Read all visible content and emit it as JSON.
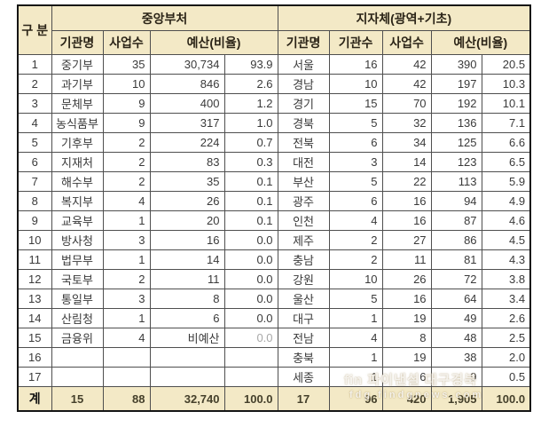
{
  "colors": {
    "header_bg": "#F3E9C6",
    "grid_line": "#4F4F4F",
    "outer_border": "#151515",
    "header_text": "#2B2417",
    "body_text": "#3A3A3A",
    "total_text": "#45402B",
    "muted_text": "#A8A8A8"
  },
  "header": {
    "group_label": "구 분",
    "central": {
      "title": "중앙부처",
      "cols": {
        "name": "기관명",
        "projects": "사업수",
        "budget": "예산(비율)"
      }
    },
    "local": {
      "title": "지자체(광역+기초)",
      "cols": {
        "name": "기관명",
        "orgs": "기관수",
        "projects": "사업수",
        "budget": "예산(비율)"
      }
    }
  },
  "rows": [
    {
      "no": "1",
      "c_name": "중기부",
      "c_proj": "35",
      "c_amt": "30,734",
      "c_pct": "93.9",
      "l_name": "서울",
      "l_org": "16",
      "l_proj": "42",
      "l_amt": "390",
      "l_pct": "20.5"
    },
    {
      "no": "2",
      "c_name": "과기부",
      "c_proj": "10",
      "c_amt": "846",
      "c_pct": "2.6",
      "l_name": "경남",
      "l_org": "10",
      "l_proj": "42",
      "l_amt": "197",
      "l_pct": "10.3"
    },
    {
      "no": "3",
      "c_name": "문체부",
      "c_proj": "9",
      "c_amt": "400",
      "c_pct": "1.2",
      "l_name": "경기",
      "l_org": "15",
      "l_proj": "70",
      "l_amt": "192",
      "l_pct": "10.1"
    },
    {
      "no": "4",
      "c_name": "농식품부",
      "c_proj": "9",
      "c_amt": "317",
      "c_pct": "1.0",
      "l_name": "경북",
      "l_org": "5",
      "l_proj": "32",
      "l_amt": "136",
      "l_pct": "7.1"
    },
    {
      "no": "5",
      "c_name": "기후부",
      "c_proj": "2",
      "c_amt": "224",
      "c_pct": "0.7",
      "l_name": "전북",
      "l_org": "6",
      "l_proj": "34",
      "l_amt": "125",
      "l_pct": "6.6"
    },
    {
      "no": "6",
      "c_name": "지재처",
      "c_proj": "2",
      "c_amt": "83",
      "c_pct": "0.3",
      "l_name": "대전",
      "l_org": "3",
      "l_proj": "14",
      "l_amt": "123",
      "l_pct": "6.5"
    },
    {
      "no": "7",
      "c_name": "해수부",
      "c_proj": "2",
      "c_amt": "35",
      "c_pct": "0.1",
      "l_name": "부산",
      "l_org": "5",
      "l_proj": "22",
      "l_amt": "113",
      "l_pct": "5.9"
    },
    {
      "no": "8",
      "c_name": "복지부",
      "c_proj": "4",
      "c_amt": "26",
      "c_pct": "0.1",
      "l_name": "광주",
      "l_org": "6",
      "l_proj": "16",
      "l_amt": "94",
      "l_pct": "4.9"
    },
    {
      "no": "9",
      "c_name": "교육부",
      "c_proj": "1",
      "c_amt": "20",
      "c_pct": "0.1",
      "l_name": "인천",
      "l_org": "4",
      "l_proj": "16",
      "l_amt": "87",
      "l_pct": "4.6"
    },
    {
      "no": "10",
      "c_name": "방사청",
      "c_proj": "3",
      "c_amt": "16",
      "c_pct": "0.0",
      "l_name": "제주",
      "l_org": "2",
      "l_proj": "27",
      "l_amt": "86",
      "l_pct": "4.5"
    },
    {
      "no": "11",
      "c_name": "법무부",
      "c_proj": "1",
      "c_amt": "14",
      "c_pct": "0.0",
      "l_name": "충남",
      "l_org": "2",
      "l_proj": "11",
      "l_amt": "81",
      "l_pct": "4.3"
    },
    {
      "no": "12",
      "c_name": "국토부",
      "c_proj": "2",
      "c_amt": "11",
      "c_pct": "0.0",
      "l_name": "강원",
      "l_org": "10",
      "l_proj": "26",
      "l_amt": "72",
      "l_pct": "3.8"
    },
    {
      "no": "13",
      "c_name": "통일부",
      "c_proj": "3",
      "c_amt": "8",
      "c_pct": "0.0",
      "l_name": "울산",
      "l_org": "5",
      "l_proj": "16",
      "l_amt": "64",
      "l_pct": "3.4"
    },
    {
      "no": "14",
      "c_name": "산림청",
      "c_proj": "1",
      "c_amt": "6",
      "c_pct": "0.0",
      "l_name": "대구",
      "l_org": "1",
      "l_proj": "19",
      "l_amt": "49",
      "l_pct": "2.6"
    },
    {
      "no": "15",
      "c_name": "금융위",
      "c_proj": "4",
      "c_amt": "비예산",
      "c_pct": "0.0",
      "c_pct_muted": true,
      "l_name": "전남",
      "l_org": "4",
      "l_proj": "8",
      "l_amt": "48",
      "l_pct": "2.5"
    },
    {
      "no": "16",
      "c_name": "",
      "c_proj": "",
      "c_amt": "",
      "c_pct": "",
      "l_name": "충북",
      "l_org": "1",
      "l_proj": "19",
      "l_amt": "38",
      "l_pct": "2.0"
    },
    {
      "no": "17",
      "c_name": "",
      "c_proj": "",
      "c_amt": "",
      "c_pct": "",
      "l_name": "세종",
      "l_org": "1",
      "l_proj": "6",
      "l_amt": "9",
      "l_pct": "0.5"
    }
  ],
  "total": {
    "label": "계",
    "c_name": "15",
    "c_proj": "88",
    "c_amt": "32,740",
    "c_pct": "100.0",
    "l_name": "17",
    "l_org": "96",
    "l_proj": "420",
    "l_amt": "1,905",
    "l_pct": "100.0"
  },
  "watermark": {
    "line1": "fin 파이낸셜 대구경북",
    "line2": "fdg findgnews.com"
  }
}
